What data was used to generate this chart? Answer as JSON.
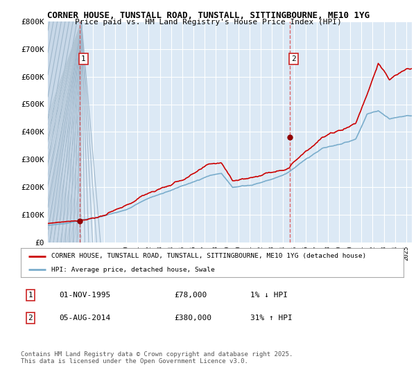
{
  "title1": "CORNER HOUSE, TUNSTALL ROAD, TUNSTALL, SITTINGBOURNE, ME10 1YG",
  "title2": "Price paid vs. HM Land Registry's House Price Index (HPI)",
  "ylim": [
    0,
    800000
  ],
  "yticks": [
    0,
    100000,
    200000,
    300000,
    400000,
    500000,
    600000,
    700000,
    800000
  ],
  "ytick_labels": [
    "£0",
    "£100K",
    "£200K",
    "£300K",
    "£400K",
    "£500K",
    "£600K",
    "£700K",
    "£800K"
  ],
  "background_color": "#ffffff",
  "plot_bg_color": "#dce9f5",
  "hatch_area_end": 1996.0,
  "grid_color": "#ffffff",
  "line_color_red": "#cc0000",
  "line_color_blue": "#7aadcc",
  "purchase1_x": 1995.83,
  "purchase1_y": 78000,
  "purchase2_x": 2014.58,
  "purchase2_y": 380000,
  "legend_line1": "CORNER HOUSE, TUNSTALL ROAD, TUNSTALL, SITTINGBOURNE, ME10 1YG (detached house)",
  "legend_line2": "HPI: Average price, detached house, Swale",
  "note1_label": "1",
  "note1_date": "01-NOV-1995",
  "note1_price": "£78,000",
  "note1_pct": "1% ↓ HPI",
  "note2_label": "2",
  "note2_date": "05-AUG-2014",
  "note2_price": "£380,000",
  "note2_pct": "31% ↑ HPI",
  "footer": "Contains HM Land Registry data © Crown copyright and database right 2025.\nThis data is licensed under the Open Government Licence v3.0.",
  "xmin": 1993,
  "xmax": 2025.5
}
